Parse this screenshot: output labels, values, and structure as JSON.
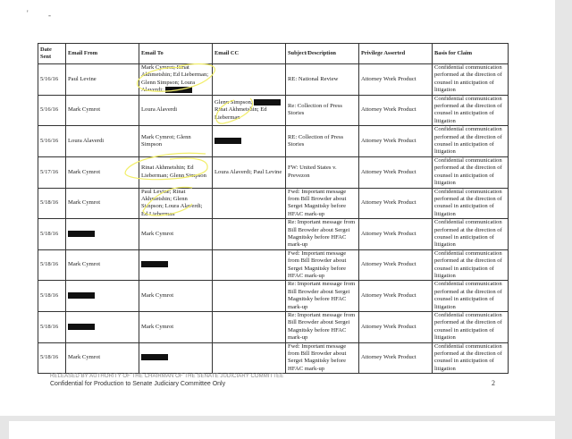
{
  "header": [
    "Date Sent",
    "Email From",
    "Email To",
    "Email CC",
    "Subject/Description",
    "Privilege Asserted",
    "Basis for Claim"
  ],
  "rows": [
    {
      "date": "5/16/16",
      "from": [
        {
          "t": "Paul Levine"
        }
      ],
      "to": [
        {
          "t": "Mark Cymrot; Rinat Akhmetshin; Ed Lieberman; Glenn Simpson; Loura Alaverdi; "
        },
        {
          "r": true
        }
      ],
      "cc": [],
      "subject": "RE: National Review",
      "privilege": "Attorney Work Product",
      "basis": "Confidential communication performed at the direction of counsel in anticipation of litigation"
    },
    {
      "date": "5/16/16",
      "from": [
        {
          "t": "Mark Cymrot"
        }
      ],
      "to": [
        {
          "t": "Loura Alaverdi"
        }
      ],
      "cc": [
        {
          "t": "Glenn Simpson; "
        },
        {
          "r": true
        },
        {
          "t": " Rinat Akhmetshin; Ed Lieberman"
        }
      ],
      "subject": "Re: Collection of Press Stories",
      "privilege": "Attorney Work Product",
      "basis": "Confidential communication performed at the direction of counsel in anticipation of litigation"
    },
    {
      "date": "5/16/16",
      "from": [
        {
          "t": "Loura Alaverdi"
        }
      ],
      "to": [
        {
          "t": "Mark Cymrot; Glenn Simpson"
        }
      ],
      "cc": [
        {
          "r": true
        }
      ],
      "subject": "RE: Collection of Press Stories",
      "privilege": "Attorney Work Product",
      "basis": "Confidential communication performed at the direction of counsel in anticipation of litigation"
    },
    {
      "date": "5/17/16",
      "from": [
        {
          "t": "Mark Cymrot"
        }
      ],
      "to": [
        {
          "t": "Rinat Akhmetshin; Ed Lieberman; Glenn Simpson"
        }
      ],
      "cc": [
        {
          "t": "Loura Alaverdi; Paul Levine"
        }
      ],
      "subject": "FW: United States v. Prevezon",
      "privilege": "Attorney Work Product",
      "basis": "Confidential communication performed at the direction of counsel in anticipation of litigation"
    },
    {
      "date": "5/18/16",
      "from": [
        {
          "t": "Mark Cymrot"
        }
      ],
      "to": [
        {
          "t": "Paul Levine; Rinat Akhmetshin; Glenn Simpson; Loura Alaverdi; Ed Lieberman"
        }
      ],
      "cc": [],
      "subject": "Fwd: Important message from Bill Browder about Sergei Magnitsky before HFAC mark-up",
      "privilege": "Attorney Work Product",
      "basis": "Confidential communication performed at the direction of counsel in anticipation of litigation"
    },
    {
      "date": "5/18/16",
      "from": [
        {
          "r": true
        }
      ],
      "to": [
        {
          "t": "Mark Cymrot"
        }
      ],
      "cc": [],
      "subject": "Re: Important message from Bill Browder about Sergei Magnitsky before HFAC mark-up",
      "privilege": "Attorney Work Product",
      "basis": "Confidential communication performed at the direction of counsel in anticipation of litigation"
    },
    {
      "date": "5/18/16",
      "from": [
        {
          "t": "Mark Cymrot"
        }
      ],
      "to": [
        {
          "r": true
        }
      ],
      "cc": [],
      "subject": "Fwd: Important message from Bill Browder about Sergei Magnitsky before HFAC mark-up",
      "privilege": "Attorney Work Product",
      "basis": "Confidential communication performed at the direction of counsel in anticipation of litigation"
    },
    {
      "date": "5/18/16",
      "from": [
        {
          "r": true
        }
      ],
      "to": [
        {
          "t": "Mark Cymrot"
        }
      ],
      "cc": [],
      "subject": "Re: Important message from Bill Browder about Sergei Magnitsky before HFAC mark-up",
      "privilege": "Attorney Work Product",
      "basis": "Confidential communication performed at the direction of counsel in anticipation of litigation"
    },
    {
      "date": "5/18/16",
      "from": [
        {
          "r": true
        }
      ],
      "to": [
        {
          "t": "Mark Cymrot"
        }
      ],
      "cc": [],
      "subject": "Re: Important message from Bill Browder about Sergei Magnitsky before HFAC mark-up",
      "privilege": "Attorney Work Product",
      "basis": "Confidential communication performed at the direction of counsel in anticipation of litigation"
    },
    {
      "date": "5/18/16",
      "from": [
        {
          "t": "Mark Cymrot"
        }
      ],
      "to": [
        {
          "r": true
        }
      ],
      "cc": [],
      "subject": "Fwd: Important message from Bill Browder about Sergei Magnitsky before HFAC mark-up",
      "privilege": "Attorney Work Product",
      "basis": "Confidential communication performed at the direction of counsel in anticipation of litigation"
    }
  ],
  "footer": {
    "release_line": "RELEASED BY AUTHORITY OF THE CHAIRMAN OF THE SENATE JUDICIARY COMMITTEE",
    "confidential_line": "Confidential for Production to Senate Judiciary Committee Only",
    "page_number": "2"
  },
  "colors": {
    "highlight": "#f2ee6a",
    "redaction": "#111111"
  }
}
